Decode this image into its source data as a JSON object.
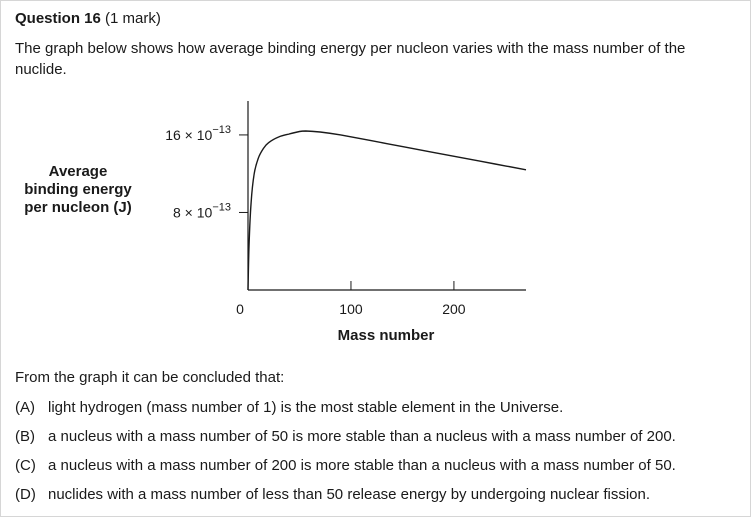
{
  "question": {
    "number_label": "Question 16",
    "marks": "(1 mark)",
    "intro": "The graph below shows how average binding energy per nucleon varies with the mass number of the nuclide."
  },
  "chart_data": {
    "type": "line",
    "ylabel_lines": [
      "Average",
      "binding energy",
      "per nucleon (J)"
    ],
    "xlabel": "Mass number",
    "y_ticks": [
      {
        "value": 8e-13,
        "base": "8 × 10",
        "exp": "−13"
      },
      {
        "value": 1.6e-12,
        "base": "16 × 10",
        "exp": "−13"
      }
    ],
    "x_ticks": [
      {
        "value": 0,
        "label": "0"
      },
      {
        "value": 100,
        "label": "100"
      },
      {
        "value": 200,
        "label": "200"
      }
    ],
    "xlim": [
      0,
      270
    ],
    "ylim": [
      0,
      1.95e-12
    ],
    "series": [
      {
        "x": [
          0,
          1,
          3,
          6,
          10,
          15,
          20,
          30,
          40,
          50,
          56,
          70,
          90,
          120,
          150,
          180,
          210,
          240,
          270
        ],
        "y": [
          0,
          4.5e-13,
          9e-13,
          1.2e-12,
          1.36e-12,
          1.46e-12,
          1.52e-12,
          1.58e-12,
          1.61e-12,
          1.635e-12,
          1.64e-12,
          1.63e-12,
          1.6e-12,
          1.54e-12,
          1.48e-12,
          1.42e-12,
          1.36e-12,
          1.3e-12,
          1.24e-12
        ],
        "color": "#1a1a1a"
      }
    ],
    "grid": false,
    "legend": "none"
  },
  "prompt": "From the graph it can be concluded that:",
  "options": [
    {
      "letter": "(A)",
      "text": "light hydrogen (mass number of 1) is the most stable element in the Universe."
    },
    {
      "letter": "(B)",
      "text": "a nucleus with a mass number of 50 is more stable than a nucleus with a mass number of 200."
    },
    {
      "letter": "(C)",
      "text": "a nucleus with a mass number of 200 is more stable than a nucleus with a mass number of 50."
    },
    {
      "letter": "(D)",
      "text": "nuclides with a mass number of less than 50 release energy by undergoing nuclear fission."
    }
  ]
}
